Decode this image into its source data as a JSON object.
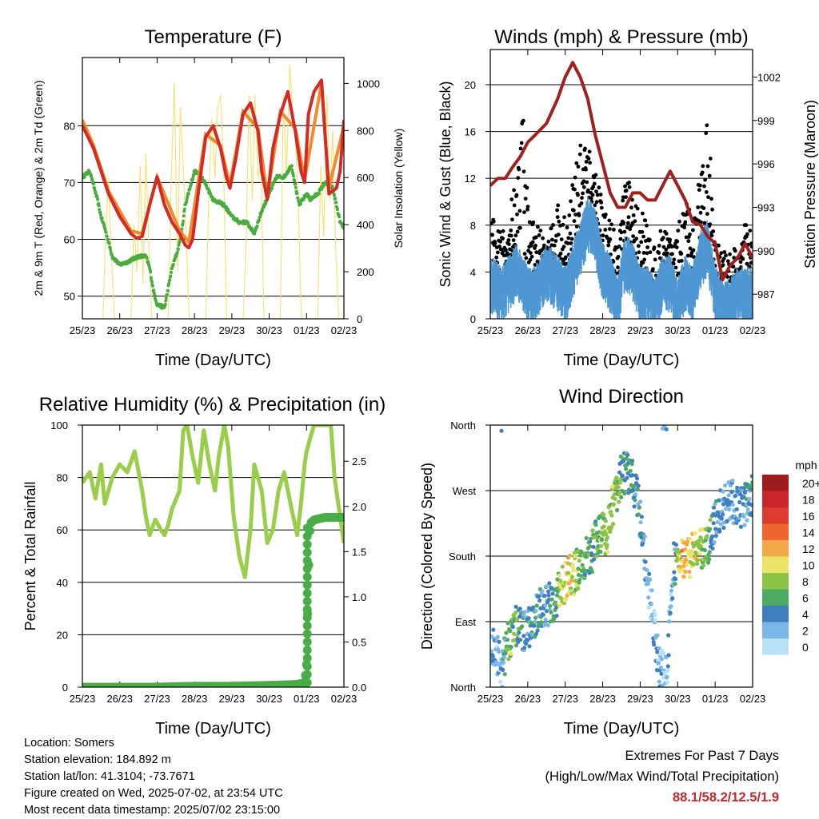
{
  "info": {
    "location": "Location: Somers",
    "elevation": "Station elevation: 184.892 m",
    "latlon": "Station lat/lon: 41.3104; -73.7671",
    "created": "Figure created on Wed, 2025-07-02, at 23:54 UTC",
    "recent": "Most recent data timestamp: 2025/07/02 23:15:00"
  },
  "extremes": {
    "title": "Extremes For Past 7 Days",
    "subtitle": "(High/Low/Max Wind/Total Precipitation)",
    "values": "88.1/58.2/12.5/1.9",
    "color": "#c8262c"
  },
  "colors": {
    "temp2m": "#d42a25",
    "temp9m": "#f08a2a",
    "dewpoint": "#4aab3f",
    "solar": "#f7e27a",
    "wind": "#4f97d2",
    "gust": "#000000",
    "pressure": "#a02020",
    "rh": "#9acd4a",
    "precip": "#49ad46"
  },
  "chart_data": [
    {
      "type": "line",
      "title": "Temperature (F)",
      "xlabel": "Time (Day/UTC)",
      "ylabel": "2m & 9m T (Red, Orange) & 2m Td (Green)",
      "y2label": "Solar Insolation (Yellow)",
      "x_ticks": [
        "25/23",
        "26/23",
        "27/23",
        "28/23",
        "29/23",
        "30/23",
        "01/23",
        "02/23"
      ],
      "xlim": [
        0,
        7
      ],
      "ylim": [
        46,
        92
      ],
      "y_ticks": [
        50,
        60,
        70,
        80
      ],
      "y2lim": [
        0,
        1110
      ],
      "y2_ticks": [
        0,
        200,
        400,
        600,
        800,
        1000
      ],
      "grid": true,
      "series": [
        {
          "name": "2m T",
          "axis": "left",
          "x": [
            0,
            0.15,
            0.3,
            0.5,
            0.7,
            1.0,
            1.3,
            1.45,
            1.6,
            1.8,
            2.0,
            2.2,
            2.4,
            2.6,
            2.75,
            2.85,
            2.95,
            3.1,
            3.3,
            3.5,
            3.7,
            3.85,
            3.95,
            4.1,
            4.3,
            4.5,
            4.7,
            4.8,
            4.95,
            5.1,
            5.3,
            5.5,
            5.7,
            5.85,
            5.95,
            6.05,
            6.2,
            6.4,
            6.6,
            6.8,
            6.9,
            7.0
          ],
          "values": [
            80,
            78,
            76,
            72,
            68,
            64,
            61,
            60.2,
            60.5,
            66,
            71,
            66,
            63,
            61,
            59,
            58.5,
            60,
            68,
            78,
            80,
            76,
            71,
            69,
            74,
            82,
            84,
            79,
            72,
            67,
            76,
            82,
            86,
            79,
            72,
            70,
            82,
            86,
            88,
            68,
            69,
            72,
            81
          ]
        },
        {
          "name": "9m T",
          "axis": "left",
          "x": [
            0,
            0.3,
            0.7,
            1.3,
            1.6,
            2.0,
            2.6,
            2.85,
            3.3,
            3.7,
            3.95,
            4.3,
            4.7,
            4.95,
            5.3,
            5.7,
            5.95,
            6.4,
            6.6,
            7.0
          ],
          "values": [
            81,
            76.5,
            68.5,
            61.5,
            61,
            71,
            61.5,
            59.5,
            78.5,
            76.5,
            69.5,
            82.5,
            79.5,
            67.5,
            82.5,
            79.5,
            70.5,
            87.5,
            69,
            80
          ]
        },
        {
          "name": "2m Td",
          "axis": "left",
          "x": [
            0,
            0.2,
            0.4,
            0.5,
            0.6,
            0.8,
            1.0,
            1.2,
            1.5,
            1.7,
            1.8,
            1.9,
            2.0,
            2.2,
            2.4,
            2.55,
            2.65,
            2.75,
            3.0,
            3.2,
            3.5,
            3.8,
            4.0,
            4.2,
            4.4,
            4.6,
            4.8,
            5.0,
            5.2,
            5.4,
            5.6,
            5.8,
            6.0,
            6.1,
            6.3,
            6.5,
            6.7,
            6.9,
            7.0
          ],
          "values": [
            71,
            72,
            67,
            64,
            62,
            57,
            55.5,
            56,
            57,
            57,
            55,
            51,
            48.5,
            48,
            55,
            58,
            61,
            66,
            72,
            71,
            67,
            66,
            64,
            63,
            63,
            61,
            65,
            68,
            71,
            71,
            73,
            66,
            68,
            67,
            68,
            70,
            69,
            63,
            62
          ]
        },
        {
          "name": "Solar Insolation",
          "axis": "right",
          "x": [
            0.55,
            0.62,
            0.7,
            0.78,
            0.86,
            1.3,
            1.38,
            1.46,
            1.55,
            1.62,
            1.7,
            1.78,
            1.86,
            2.3,
            2.38,
            2.46,
            2.55,
            2.62,
            2.7,
            2.78,
            2.86,
            3.3,
            3.38,
            3.46,
            3.55,
            3.62,
            3.7,
            3.78,
            3.86,
            4.3,
            4.38,
            4.46,
            4.55,
            4.62,
            4.7,
            4.78,
            4.86,
            5.3,
            5.38,
            5.46,
            5.55,
            5.62,
            5.7,
            5.78,
            5.86,
            6.3,
            6.38,
            6.46,
            6.55,
            6.62,
            6.7,
            6.78,
            6.86
          ],
          "values": [
            0,
            350,
            600,
            250,
            0,
            0,
            400,
            200,
            650,
            150,
            700,
            300,
            0,
            0,
            600,
            1000,
            200,
            900,
            650,
            350,
            0,
            0,
            500,
            850,
            600,
            900,
            950,
            650,
            0,
            0,
            300,
            950,
            500,
            950,
            600,
            650,
            0,
            0,
            950,
            600,
            1080,
            900,
            750,
            500,
            0,
            0,
            650,
            350,
            950,
            500,
            800,
            300,
            0
          ]
        }
      ]
    },
    {
      "type": "scatter",
      "title": "Winds (mph) & Pressure (mb)",
      "xlabel": "Time (Day/UTC)",
      "ylabel": "Sonic Wind & Gust (Blue, Black)",
      "y2label": "Station Pressure (Maroon)",
      "x_ticks": [
        "25/23",
        "26/23",
        "27/23",
        "28/23",
        "29/23",
        "30/23",
        "01/23",
        "02/23"
      ],
      "xlim": [
        0,
        7
      ],
      "ylim": [
        0,
        23
      ],
      "y_ticks": [
        0,
        4,
        8,
        12,
        16,
        20
      ],
      "y2lim": [
        985.3,
        1003.9
      ],
      "y2_ticks": [
        987,
        990,
        993,
        996,
        999,
        1002
      ],
      "grid": true,
      "series": [
        {
          "name": "Wind",
          "axis": "left",
          "x": [
            0,
            0.3,
            0.5,
            0.7,
            1.0,
            1.2,
            1.5,
            1.8,
            2.0,
            2.2,
            2.4,
            2.6,
            2.8,
            3.0,
            3.2,
            3.4,
            3.6,
            3.8,
            4.0,
            4.2,
            4.4,
            4.6,
            4.8,
            5.0,
            5.2,
            5.4,
            5.6,
            5.8,
            6.0,
            6.2,
            6.4,
            6.6,
            6.8,
            7.0
          ],
          "values": [
            4,
            3,
            4,
            5,
            3,
            3,
            5,
            4,
            3,
            5,
            7,
            9,
            8,
            5,
            4,
            2,
            6,
            5,
            3,
            3,
            2,
            4,
            4,
            2,
            4,
            3,
            6,
            7,
            3,
            2,
            2,
            3,
            3,
            3
          ]
        },
        {
          "name": "Gust",
          "axis": "left",
          "x": [
            0,
            0.3,
            0.5,
            0.7,
            0.85,
            1.0,
            1.2,
            1.5,
            1.8,
            2.0,
            2.2,
            2.4,
            2.6,
            2.8,
            3.0,
            3.2,
            3.4,
            3.6,
            3.8,
            4.0,
            4.2,
            4.4,
            4.6,
            4.8,
            5.0,
            5.2,
            5.4,
            5.6,
            5.8,
            6.0,
            6.2,
            6.4,
            6.6,
            6.8,
            7.0
          ],
          "values": [
            8,
            7,
            10,
            12,
            20,
            10,
            8,
            6,
            10,
            8,
            12,
            15,
            14,
            12,
            9,
            8,
            6,
            12,
            10,
            9,
            8,
            5,
            8,
            7,
            7,
            10,
            8,
            12,
            17,
            7,
            5,
            5,
            6,
            8,
            7
          ]
        },
        {
          "name": "Station Pressure",
          "axis": "right",
          "x": [
            0,
            0.2,
            0.4,
            0.6,
            0.8,
            1.0,
            1.2,
            1.5,
            1.8,
            2.0,
            2.2,
            2.4,
            2.6,
            2.8,
            3.0,
            3.2,
            3.4,
            3.6,
            3.8,
            4.0,
            4.2,
            4.4,
            4.6,
            4.8,
            5.0,
            5.2,
            5.4,
            5.6,
            5.8,
            6.0,
            6.2,
            6.4,
            6.6,
            6.8,
            7.0
          ],
          "values": [
            994.5,
            995.0,
            995.0,
            995.8,
            996.5,
            997.5,
            998.0,
            998.8,
            1000.5,
            1002.0,
            1003.0,
            1002.0,
            1000.5,
            998.0,
            996.0,
            994.0,
            993.0,
            993.0,
            994.0,
            994.0,
            993.5,
            993.5,
            994.5,
            995.5,
            994.5,
            993.5,
            992.0,
            991.8,
            991.0,
            990.5,
            988.0,
            989.0,
            989.5,
            990.5,
            989.5
          ]
        }
      ]
    },
    {
      "type": "line",
      "title": "Relative Humidity (%) & Precipitation (in)",
      "xlabel": "Time (Day/UTC)",
      "ylabel": "Percent & Total Rainfall",
      "x_ticks": [
        "25/23",
        "26/23",
        "27/23",
        "28/23",
        "29/23",
        "30/23",
        "01/23",
        "02/23"
      ],
      "xlim": [
        0,
        7
      ],
      "ylim": [
        0,
        100
      ],
      "y_ticks": [
        0,
        20,
        40,
        60,
        80,
        100
      ],
      "y2lim": [
        0,
        2.9
      ],
      "y2_ticks": [
        0.0,
        0.5,
        1.0,
        1.5,
        2.0,
        2.5
      ],
      "grid": true,
      "series": [
        {
          "name": "Relative Humidity",
          "axis": "left",
          "x": [
            0,
            0.2,
            0.35,
            0.5,
            0.6,
            0.8,
            1.0,
            1.2,
            1.4,
            1.6,
            1.7,
            1.8,
            1.95,
            2.1,
            2.2,
            2.3,
            2.4,
            2.6,
            2.7,
            2.8,
            2.95,
            3.1,
            3.25,
            3.4,
            3.55,
            3.65,
            3.8,
            3.9,
            4.05,
            4.2,
            4.35,
            4.5,
            4.6,
            4.8,
            4.95,
            5.1,
            5.25,
            5.4,
            5.6,
            5.75,
            5.85,
            5.95,
            6.0,
            6.2,
            6.4,
            6.55,
            6.65,
            6.75,
            6.9,
            7.0
          ],
          "values": [
            78,
            82,
            72,
            85,
            70,
            80,
            85,
            82,
            90,
            75,
            65,
            58,
            64,
            60,
            58,
            62,
            68,
            75,
            98,
            100,
            88,
            78,
            98,
            85,
            75,
            88,
            100,
            92,
            65,
            50,
            42,
            60,
            85,
            75,
            55,
            60,
            75,
            82,
            68,
            58,
            70,
            85,
            90,
            100,
            100,
            100,
            100,
            80,
            65,
            55
          ]
        },
        {
          "name": "Total Rainfall",
          "axis": "right",
          "x": [
            0,
            1,
            2,
            3,
            4,
            5,
            5.75,
            5.95,
            6.0,
            6.04,
            6.08,
            6.12,
            6.2,
            6.5,
            7.0
          ],
          "values": [
            0,
            0,
            0,
            0.01,
            0.01,
            0.02,
            0.03,
            0.05,
            0.25,
            1.0,
            1.7,
            1.82,
            1.85,
            1.88,
            1.88
          ]
        }
      ]
    },
    {
      "type": "scatter",
      "title": "Wind Direction",
      "xlabel": "Time (Day/UTC)",
      "ylabel": "Direction (Colored By Speed)",
      "x_ticks": [
        "25/23",
        "26/23",
        "27/23",
        "28/23",
        "29/23",
        "30/23",
        "01/23",
        "02/23"
      ],
      "xlim": [
        0,
        7
      ],
      "ylim": [
        0,
        360
      ],
      "y_ticks": [
        "North",
        "East",
        "South",
        "West",
        "North"
      ],
      "legend_title": "mph",
      "legend": [
        "20+",
        "18",
        "16",
        "14",
        "12",
        "10",
        "8",
        "6",
        "4",
        "2",
        "0"
      ],
      "legend_colors": [
        "#9e1b1e",
        "#c8262c",
        "#de3b2e",
        "#ef6530",
        "#f5a84a",
        "#ece468",
        "#8cc345",
        "#4caa62",
        "#3f7fbf",
        "#7ab6e6",
        "#b7e1f6"
      ],
      "legend_placement": "right",
      "series": [
        {
          "name": "Direction",
          "x": [
            0.1,
            0.3,
            0.5,
            0.7,
            0.9,
            1.1,
            1.3,
            1.5,
            1.7,
            1.9,
            2.1,
            2.3,
            2.5,
            2.7,
            2.9,
            3.1,
            3.3,
            3.5,
            3.7,
            3.9,
            4.1,
            4.3,
            4.5,
            4.7,
            4.9,
            5.1,
            5.3,
            5.5,
            5.7,
            5.9,
            6.1,
            6.3,
            6.5,
            6.7,
            6.9
          ],
          "values": [
            60,
            20,
            70,
            85,
            75,
            90,
            105,
            110,
            120,
            135,
            150,
            160,
            170,
            185,
            215,
            205,
            260,
            290,
            295,
            270,
            190,
            110,
            30,
            15,
            170,
            175,
            180,
            185,
            190,
            205,
            240,
            250,
            255,
            245,
            260
          ],
          "speeds": [
            3,
            2,
            8,
            6,
            3,
            4,
            4,
            3,
            5,
            9,
            10,
            8,
            6,
            5,
            7,
            9,
            8,
            6,
            5,
            4,
            3,
            2,
            2,
            2,
            3,
            12,
            10,
            9,
            8,
            5,
            3,
            3,
            3,
            3,
            4
          ]
        }
      ]
    }
  ]
}
